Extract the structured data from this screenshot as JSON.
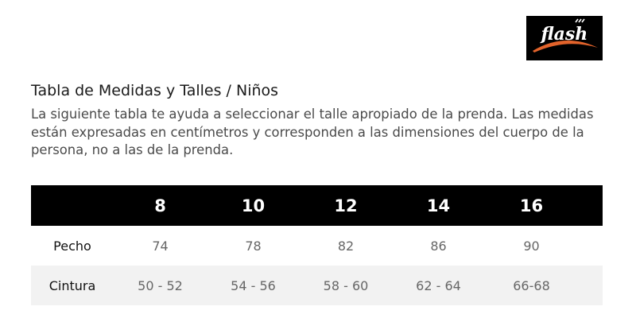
{
  "brand": {
    "name": "flash",
    "colors": {
      "bg": "#000000",
      "text": "#ffffff",
      "swoosh": "#e2632b"
    }
  },
  "title": "Tabla de Medidas y Talles / Niños",
  "description_lines": [
    "La siguiente tabla te ayuda a seleccionar el talle apropiado de la prenda. Las medidas",
    "están expresadas en centímetros y corresponden a las dimensiones del cuerpo de la",
    "persona, no a las de la prenda."
  ],
  "table": {
    "sizes": [
      "8",
      "10",
      "12",
      "14",
      "16"
    ],
    "rows": [
      {
        "label": "Pecho",
        "values": [
          "74",
          "78",
          "82",
          "86",
          "90"
        ]
      },
      {
        "label": "Cintura",
        "values": [
          "50 - 52",
          "54 - 56",
          "58 - 60",
          "62 - 64",
          "66-68"
        ]
      }
    ]
  },
  "colors": {
    "header_bg": "#000000",
    "header_text": "#ffffff",
    "shaded_row": "#f2f2f2"
  }
}
